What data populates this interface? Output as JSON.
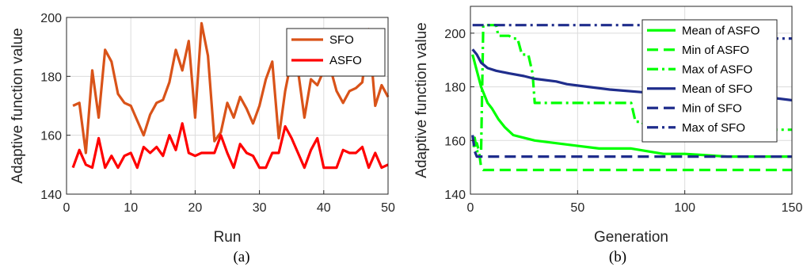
{
  "chart_data": [
    {
      "type": "line",
      "caption": "(a)",
      "xlabel": "Run",
      "ylabel": "Adaptive function value",
      "xlim": [
        0,
        50
      ],
      "ylim": [
        140,
        200
      ],
      "xticks": [
        0,
        10,
        20,
        30,
        40,
        50
      ],
      "yticks": [
        140,
        160,
        180,
        200
      ],
      "grid": true,
      "legend_position": "top-right",
      "x": [
        1,
        2,
        3,
        4,
        5,
        6,
        7,
        8,
        9,
        10,
        11,
        12,
        13,
        14,
        15,
        16,
        17,
        18,
        19,
        20,
        21,
        22,
        23,
        24,
        25,
        26,
        27,
        28,
        29,
        30,
        31,
        32,
        33,
        34,
        35,
        36,
        37,
        38,
        39,
        40,
        41,
        42,
        43,
        44,
        45,
        46,
        47,
        48,
        49,
        50
      ],
      "series": [
        {
          "name": "SFO",
          "color": "#d95319",
          "values": [
            170,
            171,
            154,
            182,
            166,
            189,
            185,
            174,
            171,
            170,
            165,
            160,
            167,
            171,
            172,
            178,
            189,
            182,
            192,
            166,
            198,
            187,
            158,
            161,
            171,
            166,
            173,
            169,
            164,
            170,
            179,
            185,
            159,
            175,
            186,
            182,
            166,
            179,
            177,
            182,
            183,
            175,
            171,
            175,
            176,
            178,
            196,
            170,
            177,
            173
          ]
        },
        {
          "name": "ASFO",
          "color": "#ff0000",
          "values": [
            149,
            155,
            150,
            149,
            159,
            149,
            153,
            149,
            153,
            154,
            149,
            156,
            154,
            156,
            153,
            160,
            155,
            164,
            154,
            153,
            154,
            154,
            154,
            160,
            154,
            149,
            157,
            154,
            153,
            149,
            149,
            154,
            154,
            163,
            159,
            154,
            149,
            155,
            159,
            149,
            149,
            149,
            155,
            154,
            154,
            156,
            149,
            154,
            149,
            150
          ]
        }
      ]
    },
    {
      "type": "line",
      "caption": "(b)",
      "xlabel": "Generation",
      "ylabel": "Adaptive function value",
      "xlim": [
        0,
        150
      ],
      "ylim": [
        140,
        210
      ],
      "xticks": [
        0,
        50,
        100,
        150
      ],
      "yticks": [
        140,
        160,
        180,
        200
      ],
      "grid": true,
      "legend_position": "top-right",
      "series": [
        {
          "name": "Mean of ASFO",
          "color": "#00ff00",
          "style": "solid",
          "points": [
            [
              1,
              192
            ],
            [
              3,
              186
            ],
            [
              5,
              180
            ],
            [
              8,
              174
            ],
            [
              10,
              172
            ],
            [
              13,
              168
            ],
            [
              16,
              165
            ],
            [
              20,
              162
            ],
            [
              25,
              161
            ],
            [
              30,
              160
            ],
            [
              40,
              159
            ],
            [
              50,
              158
            ],
            [
              60,
              157
            ],
            [
              75,
              157
            ],
            [
              90,
              155
            ],
            [
              100,
              155
            ],
            [
              120,
              154
            ],
            [
              135,
              154
            ],
            [
              150,
              154
            ]
          ]
        },
        {
          "name": "Min of ASFO",
          "color": "#00ff00",
          "style": "dashed",
          "points": [
            [
              1,
              158
            ],
            [
              2,
              158
            ],
            [
              3,
              159
            ],
            [
              4,
              156
            ],
            [
              5,
              150
            ],
            [
              6,
              149
            ],
            [
              10,
              149
            ],
            [
              50,
              149
            ],
            [
              100,
              149
            ],
            [
              150,
              149
            ]
          ]
        },
        {
          "name": "Max of ASFO",
          "color": "#00ff00",
          "style": "dashdot",
          "points": [
            [
              1,
              161
            ],
            [
              2,
              161
            ],
            [
              3,
              156
            ],
            [
              5,
              156
            ],
            [
              6,
              203
            ],
            [
              12,
              203
            ],
            [
              13,
              199
            ],
            [
              18,
              199
            ],
            [
              20,
              198
            ],
            [
              22,
              198
            ],
            [
              24,
              192
            ],
            [
              27,
              192
            ],
            [
              29,
              185
            ],
            [
              30,
              174
            ],
            [
              75,
              174
            ],
            [
              77,
              167
            ],
            [
              80,
              167
            ],
            [
              82,
              164
            ],
            [
              120,
              164
            ],
            [
              150,
              164
            ]
          ]
        },
        {
          "name": "Mean of SFO",
          "color": "#1f2d8c",
          "style": "solid",
          "points": [
            [
              1,
              194
            ],
            [
              3,
              192
            ],
            [
              5,
              189
            ],
            [
              8,
              187
            ],
            [
              12,
              186
            ],
            [
              18,
              185
            ],
            [
              25,
              184
            ],
            [
              30,
              183
            ],
            [
              40,
              182
            ],
            [
              45,
              181
            ],
            [
              55,
              180
            ],
            [
              65,
              179
            ],
            [
              80,
              178
            ],
            [
              100,
              177
            ],
            [
              120,
              176
            ],
            [
              140,
              176
            ],
            [
              150,
              175
            ]
          ]
        },
        {
          "name": "Min of SFO",
          "color": "#1f2d8c",
          "style": "dashed",
          "points": [
            [
              1,
              162
            ],
            [
              2,
              156
            ],
            [
              3,
              154
            ],
            [
              10,
              154
            ],
            [
              50,
              154
            ],
            [
              100,
              154
            ],
            [
              150,
              154
            ]
          ]
        },
        {
          "name": "Max of SFO",
          "color": "#1f2d8c",
          "style": "dashdot",
          "points": [
            [
              1,
              203
            ],
            [
              50,
              203
            ],
            [
              100,
              203
            ],
            [
              130,
              203
            ],
            [
              138,
              198
            ],
            [
              150,
              198
            ]
          ]
        }
      ]
    }
  ]
}
